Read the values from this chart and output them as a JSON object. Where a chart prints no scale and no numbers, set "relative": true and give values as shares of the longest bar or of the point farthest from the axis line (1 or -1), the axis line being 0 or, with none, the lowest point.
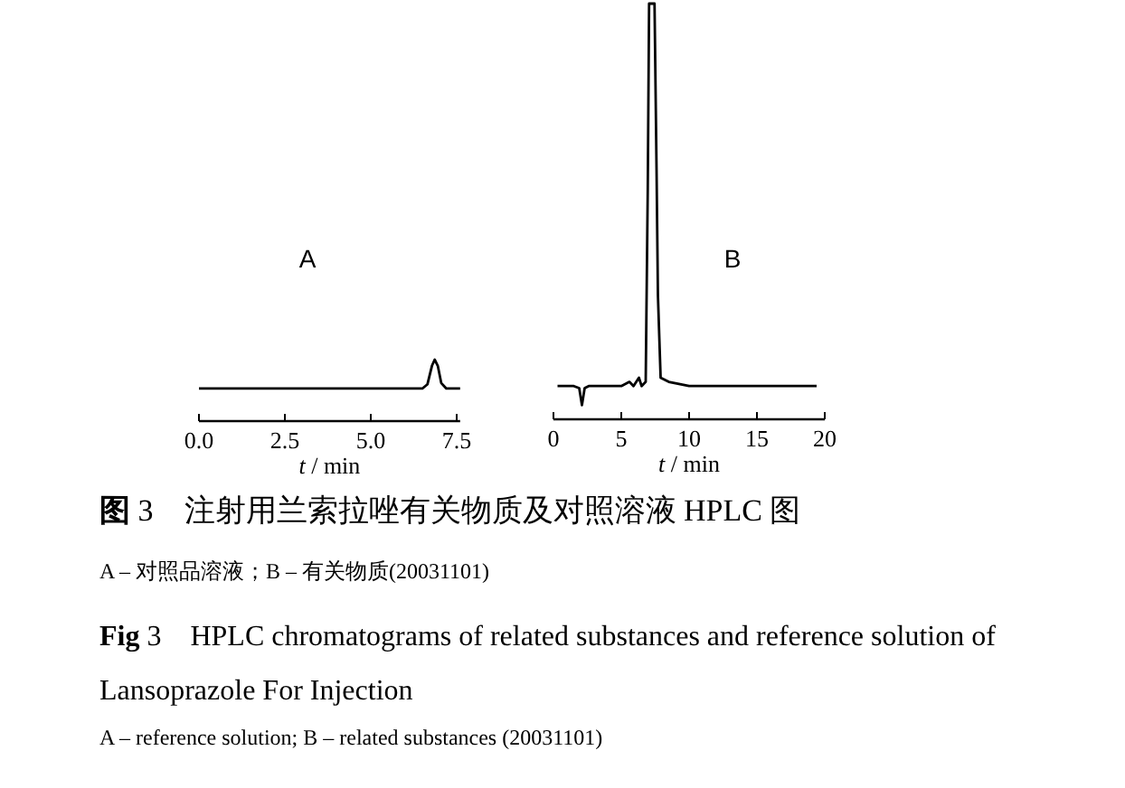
{
  "chart_data": [
    {
      "type": "line",
      "title": "A",
      "xlabel": "t / min",
      "relative": true,
      "xlim": [
        0,
        7.6
      ],
      "xticks": [
        {
          "value": 0,
          "label": "0.0"
        },
        2.5,
        {
          "value": 5,
          "label": "5.0"
        },
        7.5
      ],
      "series": [
        {
          "color": "#000000",
          "x": [
            0,
            6.5,
            6.65,
            6.78,
            6.86,
            6.95,
            7.05,
            7.2,
            7.6
          ],
          "values": [
            0.53,
            0.53,
            0.6,
            0.9,
            1,
            0.9,
            0.62,
            0.53,
            0.53
          ]
        }
      ]
    },
    {
      "type": "line",
      "title": "B",
      "xlabel": "t / min",
      "relative": true,
      "xlim": [
        0,
        20
      ],
      "xticks": [
        0,
        5,
        10,
        15,
        20
      ],
      "series": [
        {
          "color": "#000000",
          "x": [
            0.3,
            1.5,
            1.9,
            2.1,
            2.3,
            2.6,
            5.0,
            5.6,
            5.9,
            6.3,
            6.5,
            6.8,
            6.95,
            7.05,
            7.45,
            7.6,
            7.7,
            7.9,
            8.5,
            10,
            19.4
          ],
          "values": [
            0.08,
            0.08,
            0.075,
            0.034,
            0.075,
            0.08,
            0.08,
            0.09,
            0.08,
            0.1,
            0.08,
            0.09,
            0.55,
            1,
            1,
            0.6,
            0.3,
            0.1,
            0.09,
            0.08,
            0.08
          ]
        }
      ]
    },
    {
      "type": "other",
      "title": "图 3　注射用兰索拉唑有关物质及对照溶液 HPLC 图",
      "annotations": [
        "A – 对照品溶液；B – 有关物质(20031101)",
        "Fig 3　HPLC chromatograms of related substances and reference solution of Lansoprazole For Injection",
        "A – reference solution; B – related substances (20031101)"
      ]
    }
  ]
}
